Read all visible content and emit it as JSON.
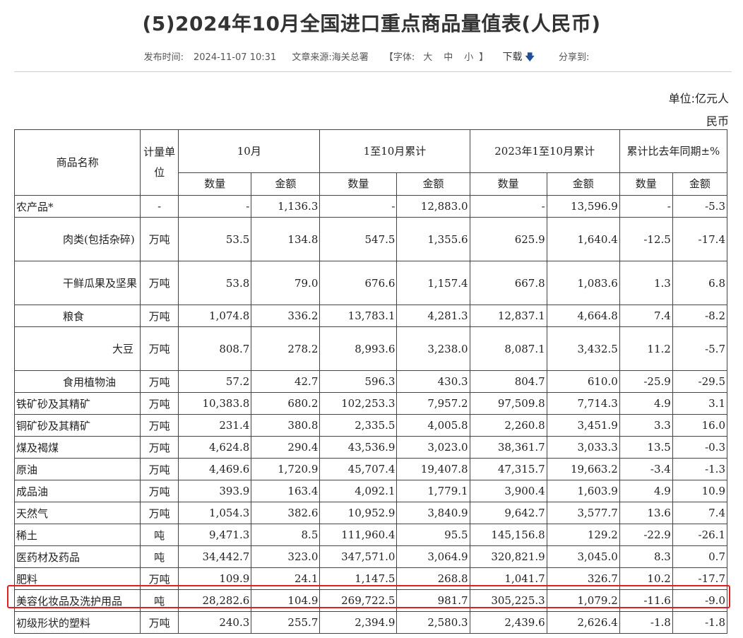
{
  "page": {
    "title": "(5)2024年10月全国进口重点商品量值表(人民币)",
    "publish_label": "发布时间:",
    "publish_time": "2024-11-07 10:31",
    "source_label": "文章来源:",
    "source": "海关总署",
    "font_label": "【字体:",
    "font_large": "大",
    "font_medium": "中",
    "font_small": "小",
    "font_close": "】",
    "download_label": "下载",
    "share_label": "分享到:",
    "unit_note": "单位:亿元人民币"
  },
  "table": {
    "headers": {
      "name": "商品名称",
      "unit": "计量单位",
      "period_oct": "10月",
      "period_ytd": "1至10月累计",
      "period_prev": "2023年1至10月累计",
      "period_change": "累计比去年同期±%",
      "qty": "数量",
      "amt": "金额"
    },
    "rows": [
      {
        "name": "农产品*",
        "unit": "-",
        "oct_qty": "-",
        "oct_amt": "1,136.3",
        "ytd_qty": "-",
        "ytd_amt": "12,883.0",
        "prev_qty": "-",
        "prev_amt": "13,596.9",
        "chg_qty": "-",
        "chg_amt": "-5.3",
        "indent": 0
      },
      {
        "name": "肉类(包括杂碎)",
        "unit": "万吨",
        "oct_qty": "53.5",
        "oct_amt": "134.8",
        "ytd_qty": "547.5",
        "ytd_amt": "1,355.6",
        "prev_qty": "625.9",
        "prev_amt": "1,640.4",
        "chg_qty": "-12.5",
        "chg_amt": "-17.4",
        "indent": 1
      },
      {
        "name": "干鲜瓜果及坚果",
        "unit": "万吨",
        "oct_qty": "53.8",
        "oct_amt": "79.0",
        "ytd_qty": "676.6",
        "ytd_amt": "1,157.4",
        "prev_qty": "667.8",
        "prev_amt": "1,083.6",
        "chg_qty": "1.3",
        "chg_amt": "6.8",
        "indent": 1
      },
      {
        "name": "粮食",
        "unit": "万吨",
        "oct_qty": "1,074.8",
        "oct_amt": "336.2",
        "ytd_qty": "13,783.1",
        "ytd_amt": "4,281.3",
        "prev_qty": "12,837.1",
        "prev_amt": "4,664.8",
        "chg_qty": "7.4",
        "chg_amt": "-8.2",
        "indent": 1
      },
      {
        "name": "大豆",
        "unit": "万吨",
        "oct_qty": "808.7",
        "oct_amt": "278.2",
        "ytd_qty": "8,993.6",
        "ytd_amt": "3,238.0",
        "prev_qty": "8,087.1",
        "prev_amt": "3,432.5",
        "chg_qty": "11.2",
        "chg_amt": "-5.7",
        "indent": 2
      },
      {
        "name": "食用植物油",
        "unit": "万吨",
        "oct_qty": "57.2",
        "oct_amt": "42.7",
        "ytd_qty": "596.3",
        "ytd_amt": "430.3",
        "prev_qty": "804.7",
        "prev_amt": "610.0",
        "chg_qty": "-25.9",
        "chg_amt": "-29.5",
        "indent": 1
      },
      {
        "name": "铁矿砂及其精矿",
        "unit": "万吨",
        "oct_qty": "10,383.8",
        "oct_amt": "680.2",
        "ytd_qty": "102,253.3",
        "ytd_amt": "7,957.2",
        "prev_qty": "97,509.8",
        "prev_amt": "7,714.3",
        "chg_qty": "4.9",
        "chg_amt": "3.1",
        "indent": 0
      },
      {
        "name": "铜矿砂及其精矿",
        "unit": "万吨",
        "oct_qty": "231.4",
        "oct_amt": "380.8",
        "ytd_qty": "2,335.5",
        "ytd_amt": "4,005.8",
        "prev_qty": "2,260.8",
        "prev_amt": "3,451.9",
        "chg_qty": "3.3",
        "chg_amt": "16.0",
        "indent": 0
      },
      {
        "name": "煤及褐煤",
        "unit": "万吨",
        "oct_qty": "4,624.8",
        "oct_amt": "290.4",
        "ytd_qty": "43,536.9",
        "ytd_amt": "3,023.0",
        "prev_qty": "38,361.7",
        "prev_amt": "3,033.3",
        "chg_qty": "13.5",
        "chg_amt": "-0.3",
        "indent": 0
      },
      {
        "name": "原油",
        "unit": "万吨",
        "oct_qty": "4,469.6",
        "oct_amt": "1,720.9",
        "ytd_qty": "45,707.4",
        "ytd_amt": "19,407.8",
        "prev_qty": "47,315.7",
        "prev_amt": "19,663.2",
        "chg_qty": "-3.4",
        "chg_amt": "-1.3",
        "indent": 0
      },
      {
        "name": "成品油",
        "unit": "万吨",
        "oct_qty": "393.9",
        "oct_amt": "163.4",
        "ytd_qty": "4,092.1",
        "ytd_amt": "1,779.1",
        "prev_qty": "3,900.4",
        "prev_amt": "1,603.9",
        "chg_qty": "4.9",
        "chg_amt": "10.9",
        "indent": 0
      },
      {
        "name": "天然气",
        "unit": "万吨",
        "oct_qty": "1,054.3",
        "oct_amt": "382.6",
        "ytd_qty": "10,952.9",
        "ytd_amt": "3,840.9",
        "prev_qty": "9,642.7",
        "prev_amt": "3,577.7",
        "chg_qty": "13.6",
        "chg_amt": "7.4",
        "indent": 0
      },
      {
        "name": "稀土",
        "unit": "吨",
        "oct_qty": "9,471.3",
        "oct_amt": "8.5",
        "ytd_qty": "111,960.4",
        "ytd_amt": "95.5",
        "prev_qty": "145,156.8",
        "prev_amt": "129.2",
        "chg_qty": "-22.9",
        "chg_amt": "-26.1",
        "indent": 0
      },
      {
        "name": "医药材及药品",
        "unit": "吨",
        "oct_qty": "34,442.7",
        "oct_amt": "323.0",
        "ytd_qty": "347,571.0",
        "ytd_amt": "3,064.9",
        "prev_qty": "320,821.9",
        "prev_amt": "3,045.0",
        "chg_qty": "8.3",
        "chg_amt": "0.7",
        "indent": 0
      },
      {
        "name": "肥料",
        "unit": "万吨",
        "oct_qty": "109.9",
        "oct_amt": "24.1",
        "ytd_qty": "1,147.5",
        "ytd_amt": "268.8",
        "prev_qty": "1,041.7",
        "prev_amt": "326.7",
        "chg_qty": "10.2",
        "chg_amt": "-17.7",
        "indent": 0
      },
      {
        "name": "美容化妆品及洗护用品",
        "unit": "吨",
        "oct_qty": "28,282.6",
        "oct_amt": "104.9",
        "ytd_qty": "269,722.5",
        "ytd_amt": "981.7",
        "prev_qty": "305,225.3",
        "prev_amt": "1,079.2",
        "chg_qty": "-11.6",
        "chg_amt": "-9.0",
        "indent": 0
      },
      {
        "name": "初级形状的塑料",
        "unit": "万吨",
        "oct_qty": "240.3",
        "oct_amt": "255.7",
        "ytd_qty": "2,394.9",
        "ytd_amt": "2,580.3",
        "prev_qty": "2,439.6",
        "prev_amt": "2,626.4",
        "chg_qty": "-1.8",
        "chg_amt": "-1.8",
        "indent": 0
      }
    ]
  },
  "colors": {
    "highlight_border": "#e02020",
    "download_icon": "#1f4e9a"
  },
  "icons": {
    "download": "arrow-down-icon"
  }
}
